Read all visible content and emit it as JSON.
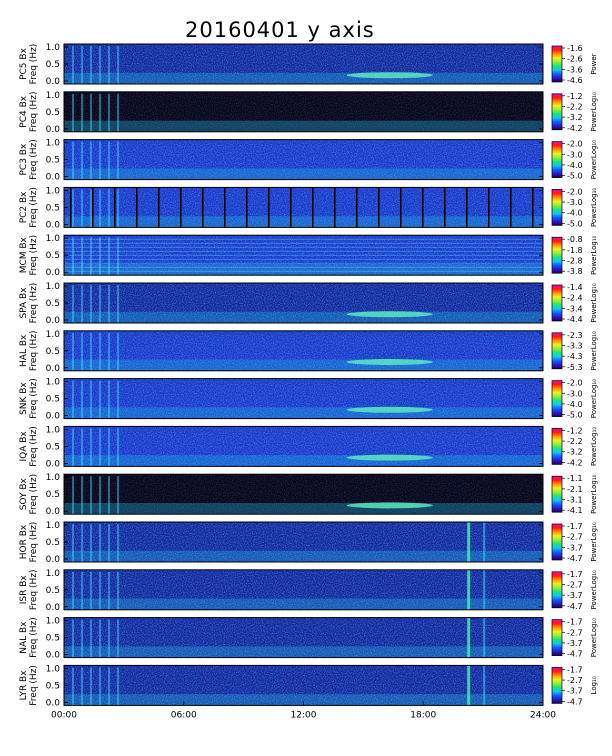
{
  "title": "20160401 y axis",
  "side_note": "",
  "colors": {
    "colorbar_stops": [
      "#1a0050",
      "#2a1ad0",
      "#1060ff",
      "#10c8f0",
      "#20e080",
      "#90f030",
      "#f0f020",
      "#ff9010",
      "#ff2000",
      "#ff00b0"
    ]
  },
  "chart_data": [
    {
      "type": "heatmap",
      "station": "PC5",
      "ylabel_line1": "PC5 Bx",
      "ylabel_line2": "Freq (Hz)",
      "yticks": [
        "1.0",
        "0.5",
        "0.0"
      ],
      "ylim": [
        0,
        1
      ],
      "colorbar_label": "Power",
      "colorbar_ticks": [
        "-1.6",
        "-2.6",
        "-3.6",
        "-4.6"
      ],
      "clim": [
        -4.6,
        -1.6
      ]
    },
    {
      "type": "heatmap",
      "station": "PC4",
      "ylabel_line1": "PC4 Bx",
      "ylabel_line2": "Freq (Hz)",
      "yticks": [
        "1.0",
        "0.5",
        "0.0"
      ],
      "ylim": [
        0,
        1
      ],
      "colorbar_label": "PowerLog₁₀",
      "colorbar_ticks": [
        "-1.2",
        "-2.2",
        "-3.2",
        "-4.2"
      ],
      "clim": [
        -4.2,
        -1.2
      ]
    },
    {
      "type": "heatmap",
      "station": "PC3",
      "ylabel_line1": "PC3 Bx",
      "ylabel_line2": "Freq (Hz)",
      "yticks": [
        "1.0",
        "0.5",
        "0.0"
      ],
      "ylim": [
        0,
        1
      ],
      "colorbar_label": "PowerLog₁₀",
      "colorbar_ticks": [
        "-2.0",
        "-3.0",
        "-4.0",
        "-5.0"
      ],
      "clim": [
        -5.0,
        -2.0
      ]
    },
    {
      "type": "heatmap",
      "station": "PC2",
      "ylabel_line1": "PC2 Bx",
      "ylabel_line2": "Freq (Hz)",
      "yticks": [
        "1.0",
        "0.5",
        "0.0"
      ],
      "ylim": [
        0,
        1
      ],
      "colorbar_label": "PowerLog₁₀",
      "colorbar_ticks": [
        "-2.0",
        "-3.0",
        "-4.0",
        "-5.0"
      ],
      "clim": [
        -5.0,
        -2.0
      ]
    },
    {
      "type": "heatmap",
      "station": "MCM",
      "ylabel_line1": "MCM Bx",
      "ylabel_line2": "Freq (Hz)",
      "yticks": [
        "1.0",
        "0.5",
        "0.0"
      ],
      "ylim": [
        0,
        1
      ],
      "colorbar_label": "PowerLog₁₀",
      "colorbar_ticks": [
        "-0.8",
        "-1.8",
        "-2.8",
        "-3.8"
      ],
      "clim": [
        -3.8,
        -0.8
      ]
    },
    {
      "type": "heatmap",
      "station": "SPA",
      "ylabel_line1": "SPA Bx",
      "ylabel_line2": "Freq (Hz)",
      "yticks": [
        "1.0",
        "0.5",
        "0.0"
      ],
      "ylim": [
        0,
        1
      ],
      "colorbar_label": "PowerLog₁₀",
      "colorbar_ticks": [
        "-1.4",
        "-2.4",
        "-3.4",
        "-4.4"
      ],
      "clim": [
        -4.4,
        -1.4
      ]
    },
    {
      "type": "heatmap",
      "station": "HAL",
      "ylabel_line1": "HAL Bx",
      "ylabel_line2": "Freq (Hz)",
      "yticks": [
        "1.0",
        "0.5",
        "0.0"
      ],
      "ylim": [
        0,
        1
      ],
      "colorbar_label": "PowerLog₁₀",
      "colorbar_ticks": [
        "-2.3",
        "-3.3",
        "-4.3",
        "-5.3"
      ],
      "clim": [
        -5.3,
        -2.3
      ]
    },
    {
      "type": "heatmap",
      "station": "SNK",
      "ylabel_line1": "SNK Bx",
      "ylabel_line2": "Freq (Hz)",
      "yticks": [
        "1.0",
        "0.5",
        "0.0"
      ],
      "ylim": [
        0,
        1
      ],
      "colorbar_label": "PowerLog₁₀",
      "colorbar_ticks": [
        "-2.0",
        "-3.0",
        "-4.0",
        "-5.0"
      ],
      "clim": [
        -5.0,
        -2.0
      ]
    },
    {
      "type": "heatmap",
      "station": "IQA",
      "ylabel_line1": "IQA Bx",
      "ylabel_line2": "Freq (Hz)",
      "yticks": [
        "1.0",
        "0.5",
        "0.0"
      ],
      "ylim": [
        0,
        1
      ],
      "colorbar_label": "PowerLog₁₀",
      "colorbar_ticks": [
        "-1.2",
        "-2.2",
        "-3.2",
        "-4.2"
      ],
      "clim": [
        -4.2,
        -1.2
      ]
    },
    {
      "type": "heatmap",
      "station": "SOY",
      "ylabel_line1": "SOY Bx",
      "ylabel_line2": "Freq (Hz)",
      "yticks": [
        "1.0",
        "0.5",
        "0.0"
      ],
      "ylim": [
        0,
        1
      ],
      "colorbar_label": "PowerLog₁₀",
      "colorbar_ticks": [
        "-1.1",
        "-2.1",
        "-3.1",
        "-4.1"
      ],
      "clim": [
        -4.1,
        -1.1
      ]
    },
    {
      "type": "heatmap",
      "station": "HOR",
      "ylabel_line1": "HOR Bx",
      "ylabel_line2": "Freq (Hz)",
      "yticks": [
        "1.0",
        "0.5",
        "0.0"
      ],
      "ylim": [
        0,
        1
      ],
      "colorbar_label": "PowerLog₁₀",
      "colorbar_ticks": [
        "-1.7",
        "-2.7",
        "-3.7",
        "-4.7"
      ],
      "clim": [
        -4.7,
        -1.7
      ]
    },
    {
      "type": "heatmap",
      "station": "ISR",
      "ylabel_line1": "ISR Bx",
      "ylabel_line2": "Freq (Hz)",
      "yticks": [
        "1.0",
        "0.5",
        "0.0"
      ],
      "ylim": [
        0,
        1
      ],
      "colorbar_label": "PowerLog₁₀",
      "colorbar_ticks": [
        "-1.7",
        "-2.7",
        "-3.7",
        "-4.7"
      ],
      "clim": [
        -4.7,
        -1.7
      ]
    },
    {
      "type": "heatmap",
      "station": "NAL",
      "ylabel_line1": "NAL Bx",
      "ylabel_line2": "Freq (Hz)",
      "yticks": [
        "1.0",
        "0.5",
        "0.0"
      ],
      "ylim": [
        0,
        1
      ],
      "colorbar_label": "PowerLog₁₀",
      "colorbar_ticks": [
        "-1.7",
        "-2.7",
        "-3.7",
        "-4.7"
      ],
      "clim": [
        -4.7,
        -1.7
      ]
    },
    {
      "type": "heatmap",
      "station": "LYR",
      "ylabel_line1": "LYR Bx",
      "ylabel_line2": "Freq (Hz)",
      "yticks": [
        "1.0",
        "0.5",
        "0.0"
      ],
      "ylim": [
        0,
        1
      ],
      "colorbar_label": "Log₁₀",
      "colorbar_ticks": [
        "-1.7",
        "-2.7",
        "-3.7",
        "-4.7"
      ],
      "clim": [
        -4.7,
        -1.7
      ]
    }
  ],
  "x_axis": {
    "ticks": [
      "00:00",
      "06:00",
      "12:00",
      "18:00",
      "24:00"
    ],
    "range_hours": [
      0,
      24
    ]
  }
}
